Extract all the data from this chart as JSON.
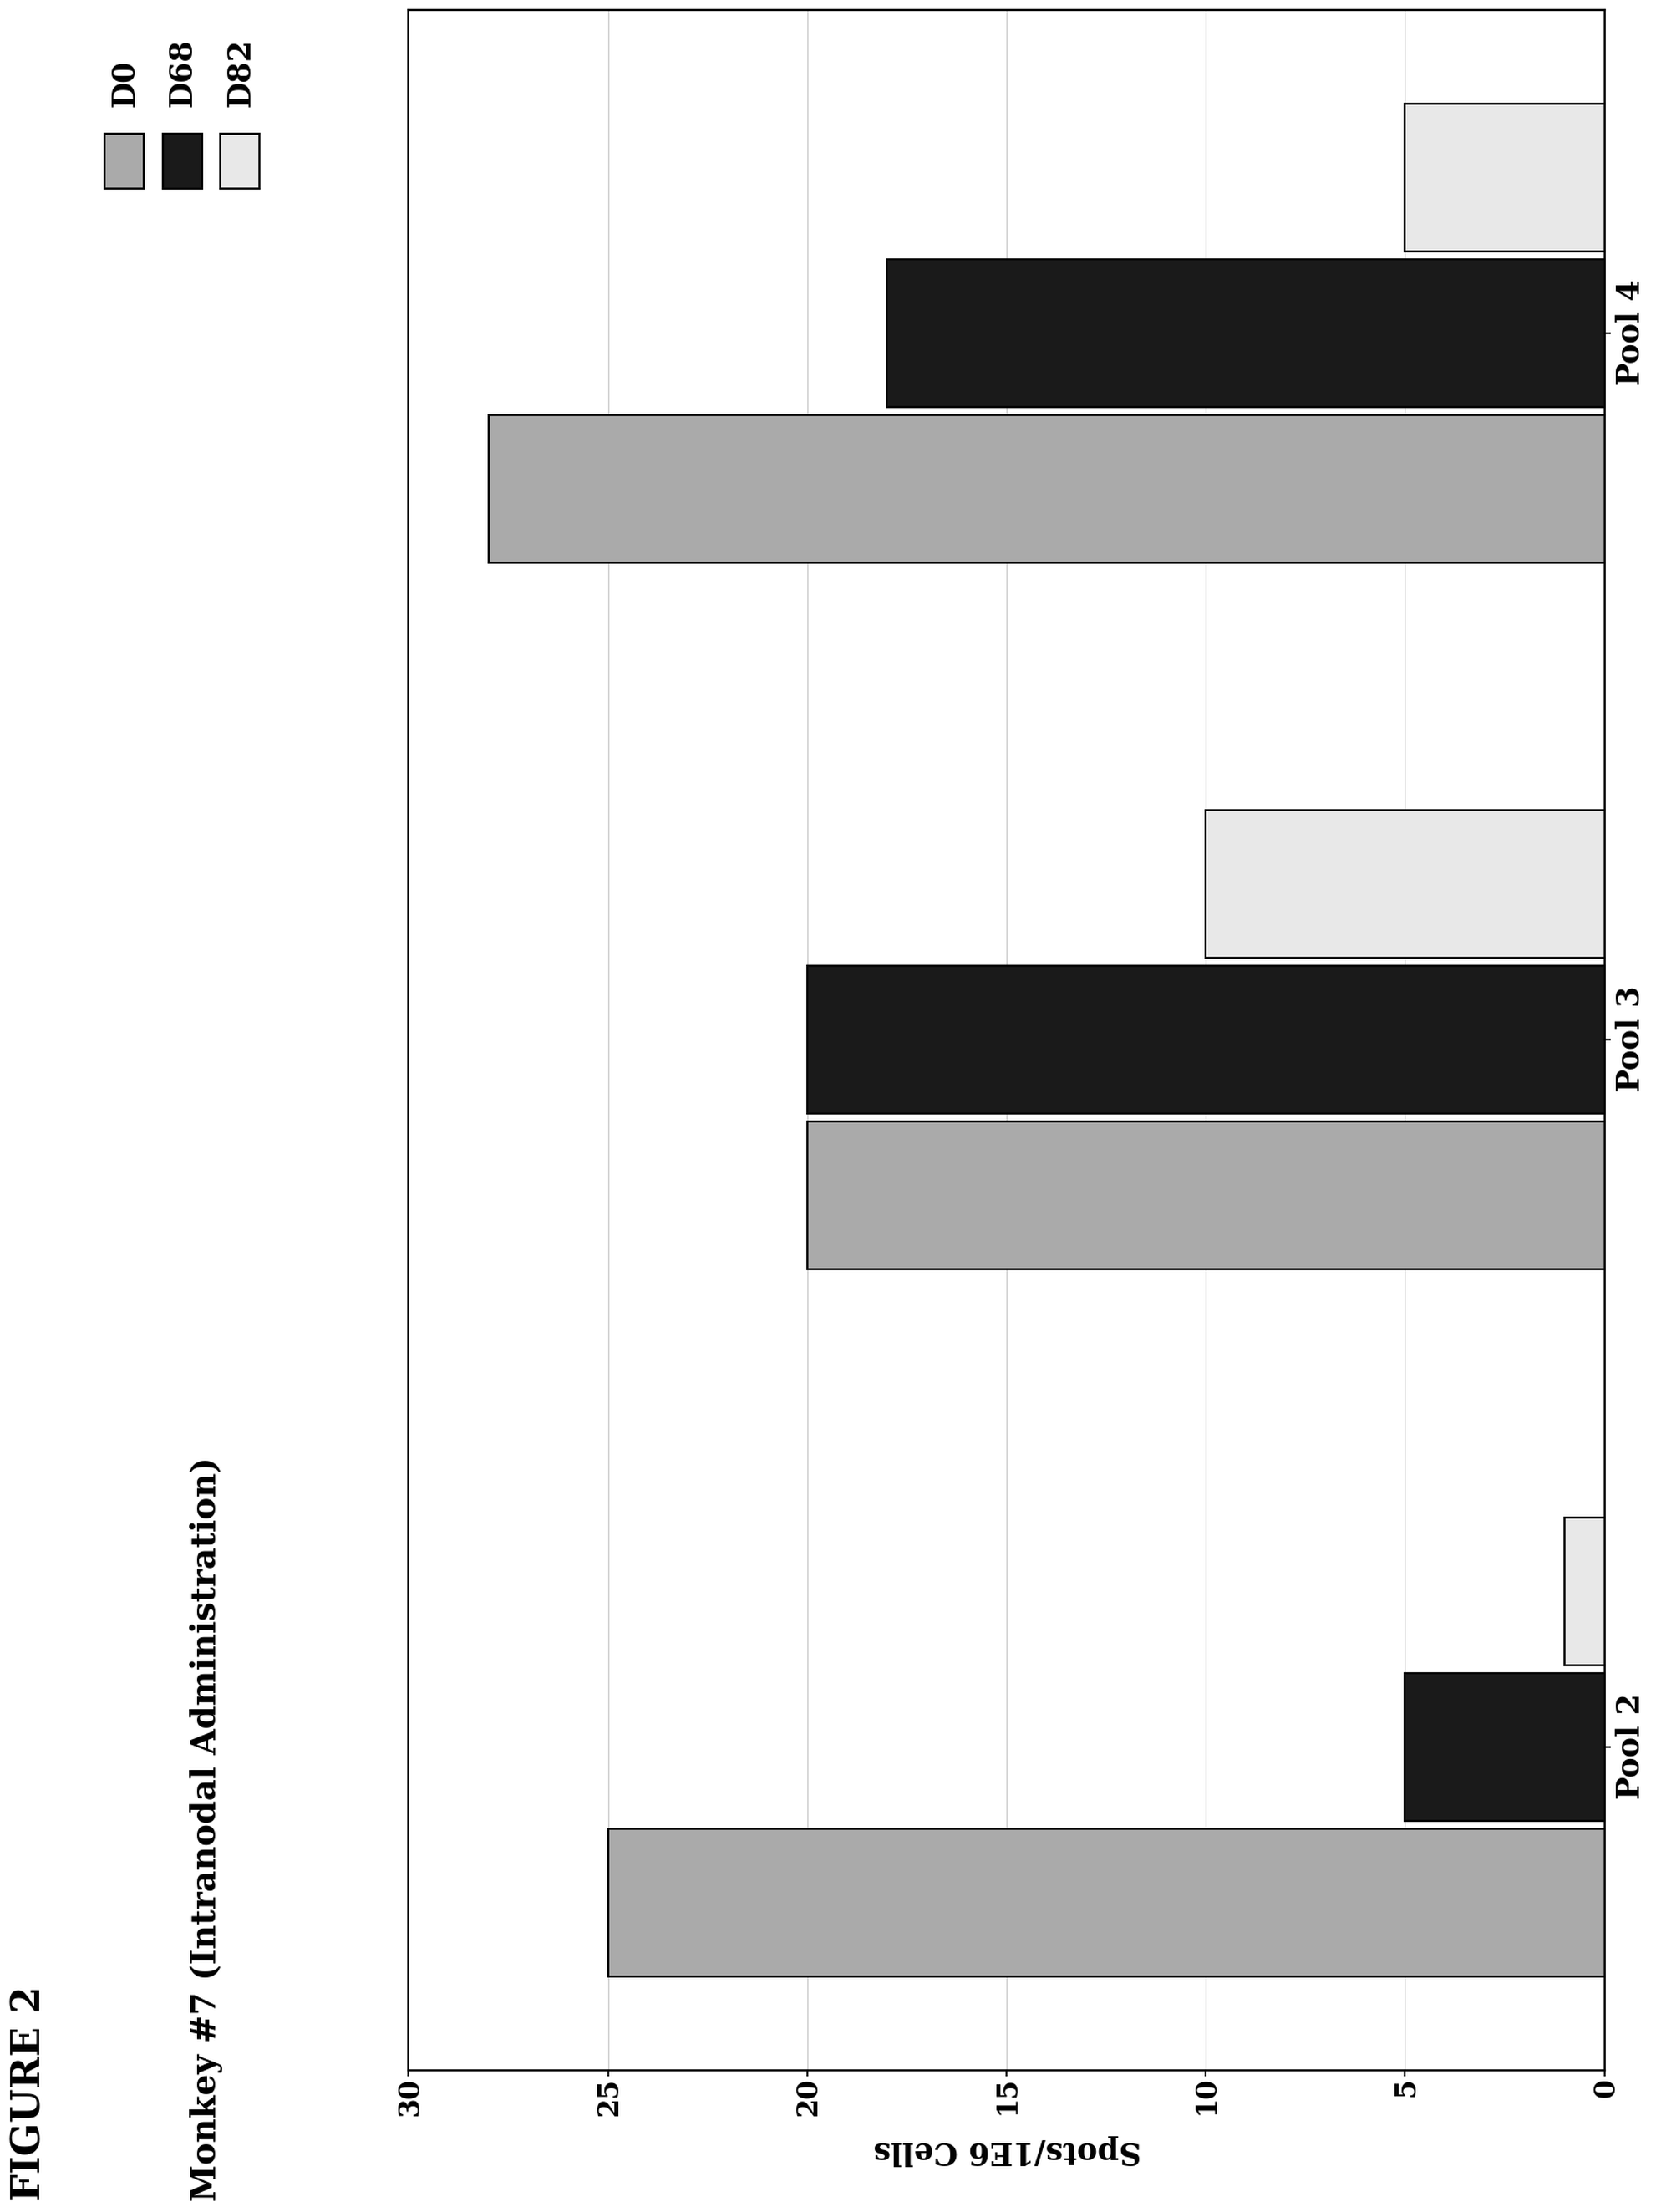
{
  "title": "FIGURE 2",
  "subtitle": "Monkey #7 (Intranodal Administration)",
  "ylabel": "Spots/1E6 Cells",
  "categories": [
    "Pool 2",
    "Pool 3",
    "Pool 4"
  ],
  "series": {
    "D0": [
      25,
      20,
      28
    ],
    "D68": [
      5,
      20,
      18
    ],
    "D82": [
      1,
      10,
      5
    ]
  },
  "colors": {
    "D0": "#aaaaaa",
    "D68": "#1a1a1a",
    "D82": "#e8e8e8"
  },
  "ylim": [
    0,
    30
  ],
  "yticks": [
    0,
    5,
    10,
    15,
    20,
    25,
    30
  ],
  "bar_width": 0.22,
  "background_color": "#ffffff",
  "title_fontsize": 28,
  "subtitle_fontsize": 24,
  "ylabel_fontsize": 22,
  "tick_fontsize": 20,
  "legend_fontsize": 22,
  "edgecolor": "#000000",
  "legend_labels": [
    "D0",
    "D68",
    "D82"
  ]
}
